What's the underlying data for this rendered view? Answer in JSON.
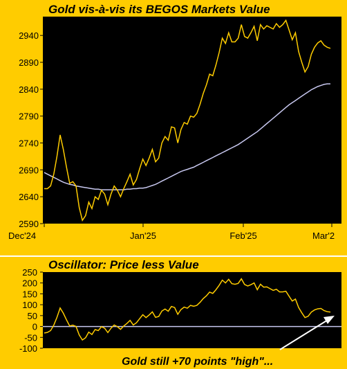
{
  "colors": {
    "background": "#FFCC00",
    "plot_background": "#000000",
    "price_line": "#FFCC00",
    "value_line": "#C8C8F0",
    "zero_line": "#C8C8F0",
    "arrow": "#FFFFFF"
  },
  "chart_data": [
    {
      "type": "line",
      "title": "Gold vis-à-vis its BEGOS Markets Value",
      "xlabel": "",
      "ylabel": "",
      "x_tick_labels": [
        "Dec'24",
        "Jan'25",
        "Feb'25",
        "Mar'2"
      ],
      "y_ticks": [
        2590,
        2640,
        2690,
        2740,
        2790,
        2840,
        2890,
        2940
      ],
      "ylim": [
        2590,
        2975
      ],
      "grid": false,
      "legend": "none",
      "series": [
        {
          "values": [
            2655,
            2655,
            2660,
            2682,
            2715,
            2755,
            2728,
            2695,
            2665,
            2668,
            2660,
            2620,
            2596,
            2605,
            2630,
            2618,
            2640,
            2635,
            2652,
            2645,
            2625,
            2645,
            2660,
            2652,
            2640,
            2655,
            2668,
            2682,
            2662,
            2672,
            2692,
            2710,
            2698,
            2712,
            2728,
            2705,
            2712,
            2740,
            2752,
            2745,
            2770,
            2768,
            2740,
            2765,
            2778,
            2775,
            2790,
            2788,
            2795,
            2812,
            2832,
            2848,
            2868,
            2865,
            2885,
            2908,
            2935,
            2925,
            2945,
            2928,
            2928,
            2935,
            2960,
            2938,
            2935,
            2945,
            2957,
            2930,
            2960,
            2952,
            2958,
            2955,
            2952,
            2962,
            2955,
            2960,
            2968,
            2950,
            2932,
            2945,
            2910,
            2890,
            2872,
            2882,
            2905,
            2918,
            2926,
            2930,
            2922,
            2918,
            2916
          ]
        },
        {
          "values": [
            2685,
            2682,
            2679,
            2676,
            2673,
            2670,
            2667,
            2665,
            2663,
            2662,
            2660,
            2659,
            2658,
            2657,
            2656,
            2655,
            2654,
            2654,
            2653,
            2653,
            2653,
            2653,
            2653,
            2653,
            2653,
            2653,
            2654,
            2654,
            2655,
            2655,
            2656,
            2656,
            2657,
            2659,
            2661,
            2663,
            2666,
            2669,
            2672,
            2675,
            2678,
            2681,
            2684,
            2687,
            2689,
            2691,
            2693,
            2695,
            2698,
            2701,
            2704,
            2707,
            2710,
            2713,
            2716,
            2719,
            2722,
            2725,
            2728,
            2731,
            2734,
            2737,
            2741,
            2745,
            2749,
            2753,
            2757,
            2761,
            2766,
            2771,
            2776,
            2781,
            2786,
            2791,
            2796,
            2801,
            2806,
            2811,
            2815,
            2819,
            2823,
            2827,
            2831,
            2835,
            2839,
            2842,
            2845,
            2847,
            2849,
            2850,
            2850
          ]
        }
      ]
    },
    {
      "type": "line",
      "title": "Oscillator:  Price less Value",
      "xlabel": "",
      "ylabel": "",
      "y_ticks": [
        -100,
        -50,
        0,
        50,
        100,
        150,
        200,
        250
      ],
      "ylim": [
        -100,
        250
      ],
      "grid": false,
      "legend": "none",
      "annotation": "Gold still +70 points \"high\"...",
      "series": [
        {
          "values": [
            -30,
            -27,
            -19,
            6,
            42,
            85,
            61,
            30,
            2,
            6,
            0,
            -39,
            -62,
            -52,
            -26,
            -37,
            -14,
            -19,
            -1,
            -8,
            -28,
            -8,
            7,
            -1,
            -13,
            2,
            14,
            28,
            7,
            17,
            36,
            54,
            41,
            53,
            67,
            42,
            46,
            71,
            80,
            70,
            92,
            87,
            56,
            78,
            89,
            84,
            97,
            93,
            97,
            111,
            128,
            141,
            158,
            152,
            169,
            189,
            213,
            200,
            217,
            197,
            194,
            198,
            219,
            193,
            186,
            192,
            200,
            169,
            194,
            181,
            182,
            174,
            166,
            171,
            159,
            159,
            162,
            139,
            117,
            126,
            87,
            63,
            41,
            47,
            66,
            76,
            81,
            83,
            73,
            68,
            66
          ]
        }
      ]
    }
  ]
}
